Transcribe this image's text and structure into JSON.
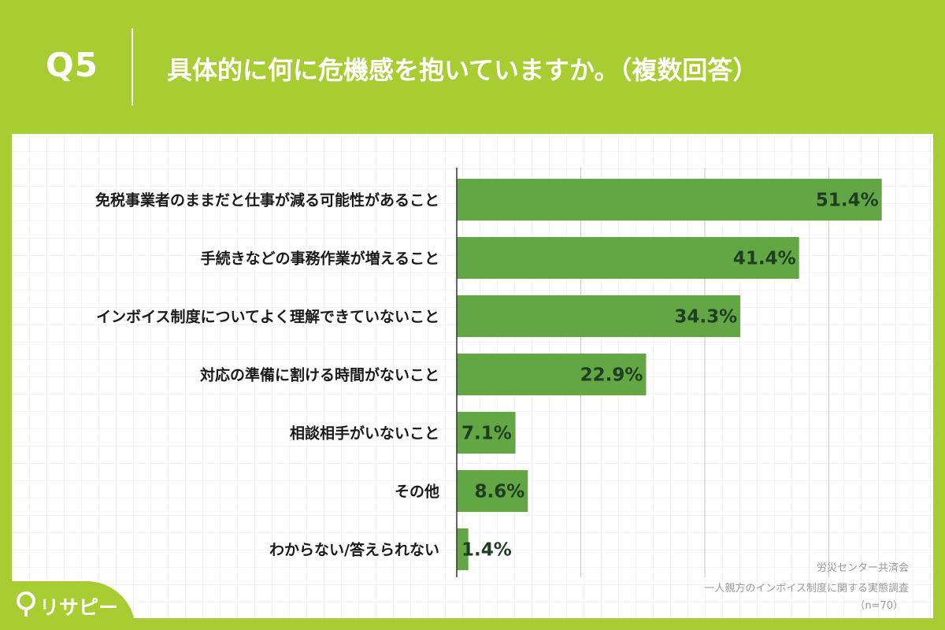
{
  "header": {
    "question_no": "Q5",
    "title": "具体的に何に危機感を抱いていますか。（複数回答）"
  },
  "source": {
    "org": "労災センター共済会",
    "survey": "一人親方のインボイス制度に関する実態調査",
    "sample": "（n=70）"
  },
  "logo": {
    "text": "リサピー",
    "icon": "pin-icon"
  },
  "colors": {
    "background": "#a8cd32",
    "bar": "#63a744",
    "value_text": "#1e3d22",
    "panel": "#ffffff"
  },
  "chart_data": {
    "type": "bar",
    "orientation": "horizontal",
    "categories": [
      "免税事業者のままだと仕事が減る可能性があること",
      "手続きなどの事務作業が増えること",
      "インボイス制度についてよく理解できていないこと",
      "対応の準備に割ける時間がないこと",
      "相談相手がいないこと",
      "その他",
      "わからない/答えられない"
    ],
    "values": [
      51.4,
      41.4,
      34.3,
      22.9,
      7.1,
      8.6,
      1.4
    ],
    "data_labels": [
      "51.4%",
      "41.4%",
      "34.3%",
      "22.9%",
      "7.1%",
      "8.6%",
      "1.4%"
    ],
    "xlim": [
      0,
      60
    ],
    "grid": true,
    "title": "具体的に何に危機感を抱いていますか。（複数回答）"
  }
}
